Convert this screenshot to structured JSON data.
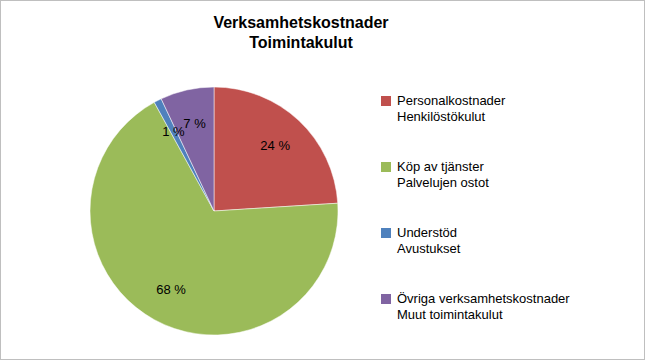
{
  "chart_data": {
    "type": "pie",
    "title": "Verksamhetskostnader\nToimintakulut",
    "categories": [
      "Personalkostnader\nHenkilöstökulut",
      "Köp av tjänster\nPalvelujen ostot",
      "Understöd\nAvustukset",
      "Övriga verksamhetskostnader\nMuut toimintakulut"
    ],
    "values": [
      24,
      68,
      1,
      7
    ],
    "value_labels": [
      "24 %",
      "68 %",
      "1 %",
      "7 %"
    ],
    "colors": [
      "#c0504d",
      "#9bbb59",
      "#4f81bd",
      "#8064a2"
    ],
    "data_labels": true,
    "legend": "right"
  }
}
